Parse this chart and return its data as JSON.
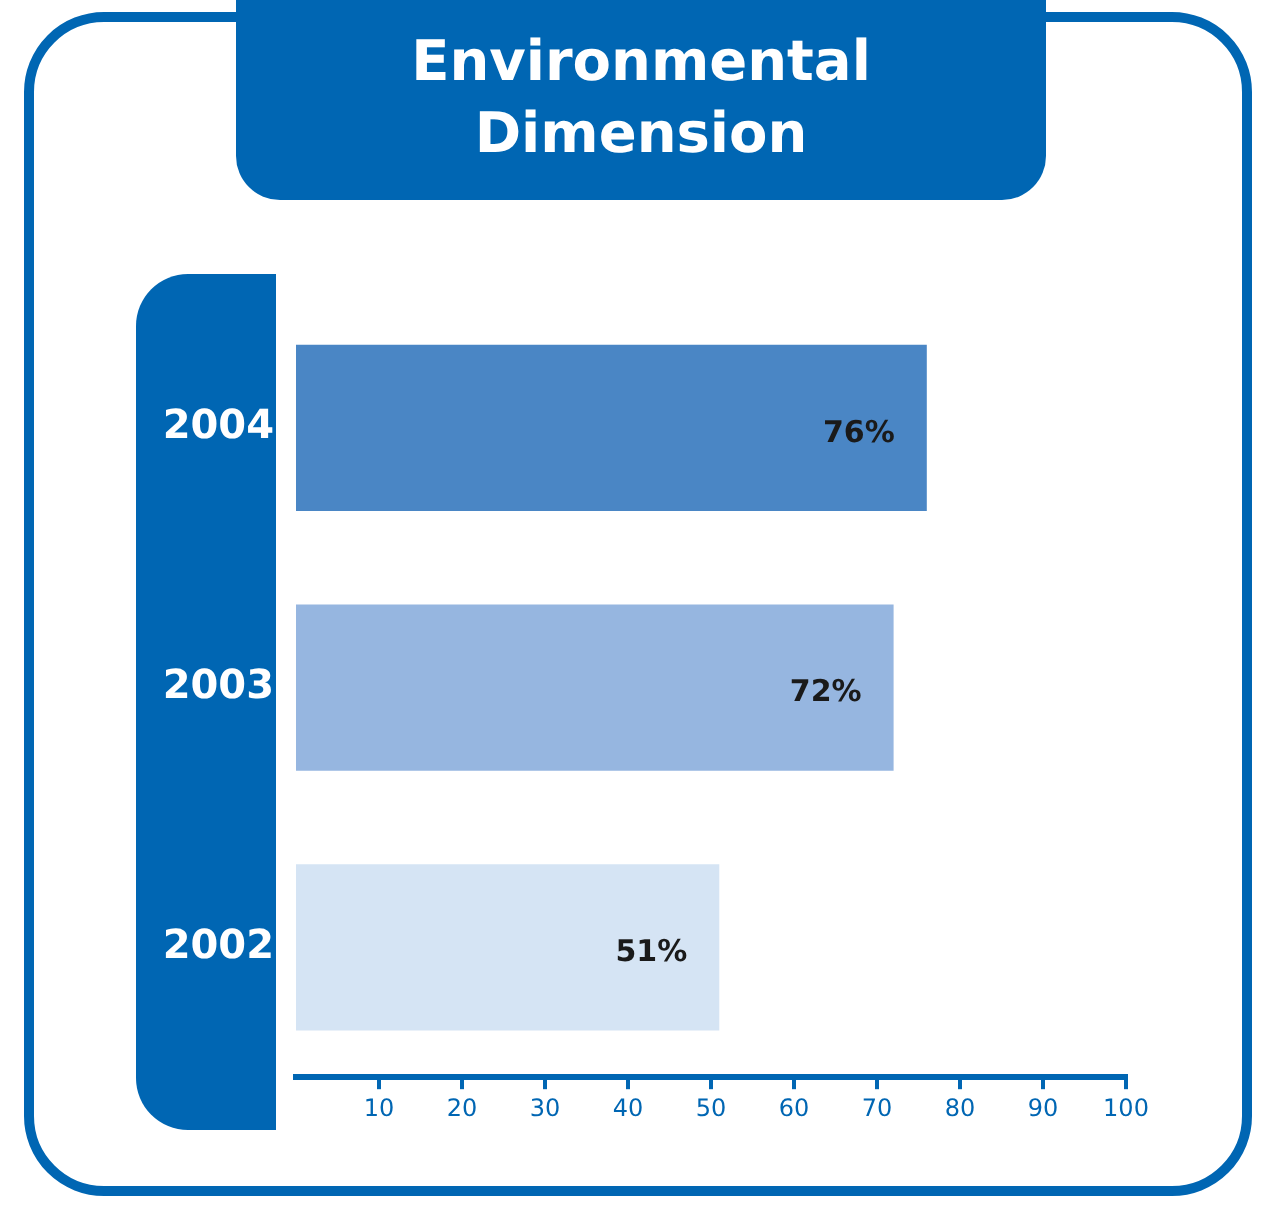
{
  "chart_data": {
    "type": "bar",
    "orientation": "horizontal",
    "title": "Environmental Dimension",
    "categories": [
      "2004",
      "2003",
      "2002"
    ],
    "values": [
      76,
      72,
      51
    ],
    "colors": [
      "#4a86c5",
      "#96b6e0",
      "#d5e4f4"
    ],
    "value_labels": [
      "76%",
      "72%",
      "51%"
    ],
    "xlim": [
      0,
      100
    ],
    "xticks": [
      10,
      20,
      30,
      40,
      50,
      60,
      70,
      80,
      90,
      100
    ],
    "grid": false,
    "legend": false
  }
}
